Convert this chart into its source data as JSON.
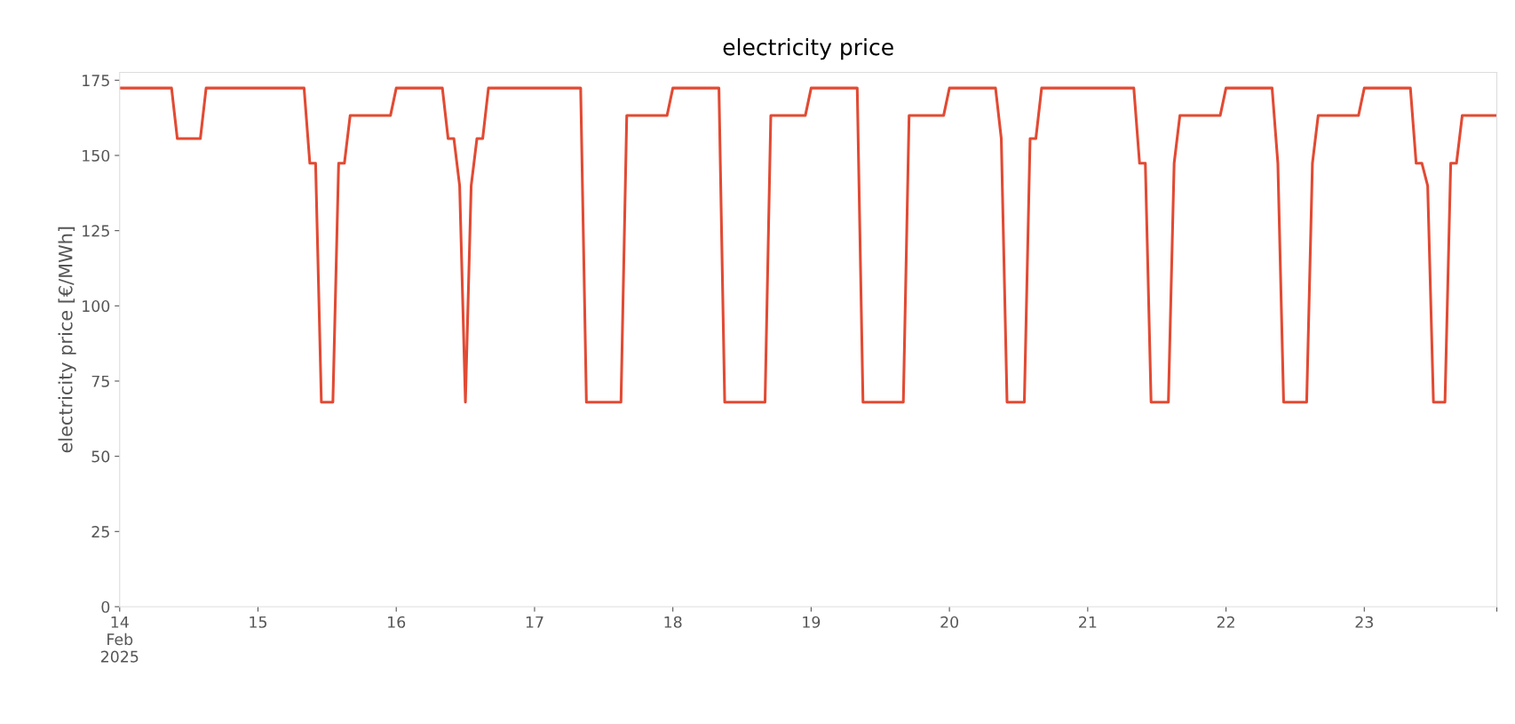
{
  "chart_data": {
    "type": "line",
    "title": "electricity price",
    "ylabel": "electricity price [€/MWh]",
    "x": [
      "2025-02-14T00:00",
      "2025-02-14T09:00",
      "2025-02-14T10:00",
      "2025-02-14T14:00",
      "2025-02-14T15:00",
      "2025-02-15T08:00",
      "2025-02-15T09:00",
      "2025-02-15T10:00",
      "2025-02-15T11:00",
      "2025-02-15T13:00",
      "2025-02-15T14:00",
      "2025-02-15T15:00",
      "2025-02-15T16:00",
      "2025-02-15T23:00",
      "2025-02-16T00:00",
      "2025-02-16T08:00",
      "2025-02-16T09:00",
      "2025-02-16T10:00",
      "2025-02-16T11:00",
      "2025-02-16T12:00",
      "2025-02-16T13:00",
      "2025-02-16T14:00",
      "2025-02-16T15:00",
      "2025-02-16T16:00",
      "2025-02-17T08:00",
      "2025-02-17T09:00",
      "2025-02-17T15:00",
      "2025-02-17T16:00",
      "2025-02-17T23:00",
      "2025-02-18T00:00",
      "2025-02-18T08:00",
      "2025-02-18T09:00",
      "2025-02-18T16:00",
      "2025-02-18T17:00",
      "2025-02-18T23:00",
      "2025-02-19T00:00",
      "2025-02-19T08:00",
      "2025-02-19T09:00",
      "2025-02-19T16:00",
      "2025-02-19T17:00",
      "2025-02-19T23:00",
      "2025-02-20T00:00",
      "2025-02-20T08:00",
      "2025-02-20T09:00",
      "2025-02-20T10:00",
      "2025-02-20T13:00",
      "2025-02-20T14:00",
      "2025-02-20T15:00",
      "2025-02-20T16:00",
      "2025-02-21T08:00",
      "2025-02-21T09:00",
      "2025-02-21T10:00",
      "2025-02-21T11:00",
      "2025-02-21T14:00",
      "2025-02-21T15:00",
      "2025-02-21T16:00",
      "2025-02-21T23:00",
      "2025-02-22T00:00",
      "2025-02-22T08:00",
      "2025-02-22T09:00",
      "2025-02-22T10:00",
      "2025-02-22T14:00",
      "2025-02-22T15:00",
      "2025-02-22T16:00",
      "2025-02-22T23:00",
      "2025-02-23T00:00",
      "2025-02-23T08:00",
      "2025-02-23T09:00",
      "2025-02-23T10:00",
      "2025-02-23T11:00",
      "2025-02-23T12:00",
      "2025-02-23T14:00",
      "2025-02-23T15:00",
      "2025-02-23T16:00",
      "2025-02-23T17:00",
      "2025-02-23T23:00"
    ],
    "series": [
      {
        "color": "#e24a33",
        "values": [
          172.4,
          172.4,
          155.6,
          155.6,
          172.4,
          172.4,
          147.4,
          147.4,
          68,
          68,
          147.4,
          147.4,
          163.3,
          163.3,
          172.4,
          172.4,
          155.6,
          155.6,
          139.9,
          68,
          139.9,
          155.6,
          155.6,
          172.4,
          172.4,
          68,
          68,
          163.3,
          163.3,
          172.4,
          172.4,
          68,
          68,
          163.3,
          163.3,
          172.4,
          172.4,
          68,
          68,
          163.3,
          163.3,
          172.4,
          172.4,
          155.6,
          68,
          68,
          155.6,
          155.6,
          172.4,
          172.4,
          147.4,
          147.4,
          68,
          68,
          147.4,
          163.3,
          163.3,
          172.4,
          172.4,
          147.4,
          68,
          68,
          147.4,
          163.3,
          163.3,
          172.4,
          172.4,
          147.4,
          147.4,
          139.9,
          68,
          68,
          147.4,
          147.4,
          163.3,
          163.3
        ]
      }
    ],
    "xlim": [
      "2025-02-14T00:00",
      "2025-02-23T23:00"
    ],
    "xticks": [
      {
        "value": "2025-02-14",
        "label": "14\nFeb\n2025"
      },
      {
        "value": "2025-02-15",
        "label": "15"
      },
      {
        "value": "2025-02-16",
        "label": "16"
      },
      {
        "value": "2025-02-17",
        "label": "17"
      },
      {
        "value": "2025-02-18",
        "label": "18"
      },
      {
        "value": "2025-02-19",
        "label": "19"
      },
      {
        "value": "2025-02-20",
        "label": "20"
      },
      {
        "value": "2025-02-21",
        "label": "21"
      },
      {
        "value": "2025-02-22",
        "label": "22"
      },
      {
        "value": "2025-02-23",
        "label": "23"
      },
      {
        "value": "2025-02-23T23:00",
        "label": null
      }
    ],
    "ylim": [
      0,
      177.6
    ],
    "yticks": [
      0,
      25,
      50,
      75,
      100,
      125,
      150,
      175
    ],
    "grid": false,
    "marker": "none",
    "line_style": "solid"
  }
}
